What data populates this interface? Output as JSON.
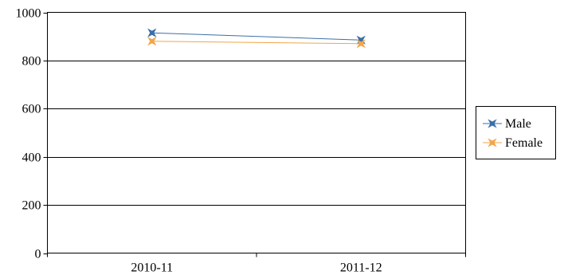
{
  "chart_data": {
    "type": "line",
    "title": "",
    "xlabel": "",
    "ylabel": "",
    "categories": [
      "2010-11",
      "2011-12"
    ],
    "ylim": [
      0,
      1000
    ],
    "yticks": [
      0,
      200,
      400,
      600,
      800,
      1000
    ],
    "grid": true,
    "legend_position": "right",
    "series": [
      {
        "name": "Male",
        "values": [
          915,
          885
        ],
        "color": "#3a6fa8",
        "marker": "star-x"
      },
      {
        "name": "Female",
        "values": [
          880,
          870
        ],
        "color": "#f2a54a",
        "marker": "star-x"
      }
    ]
  }
}
